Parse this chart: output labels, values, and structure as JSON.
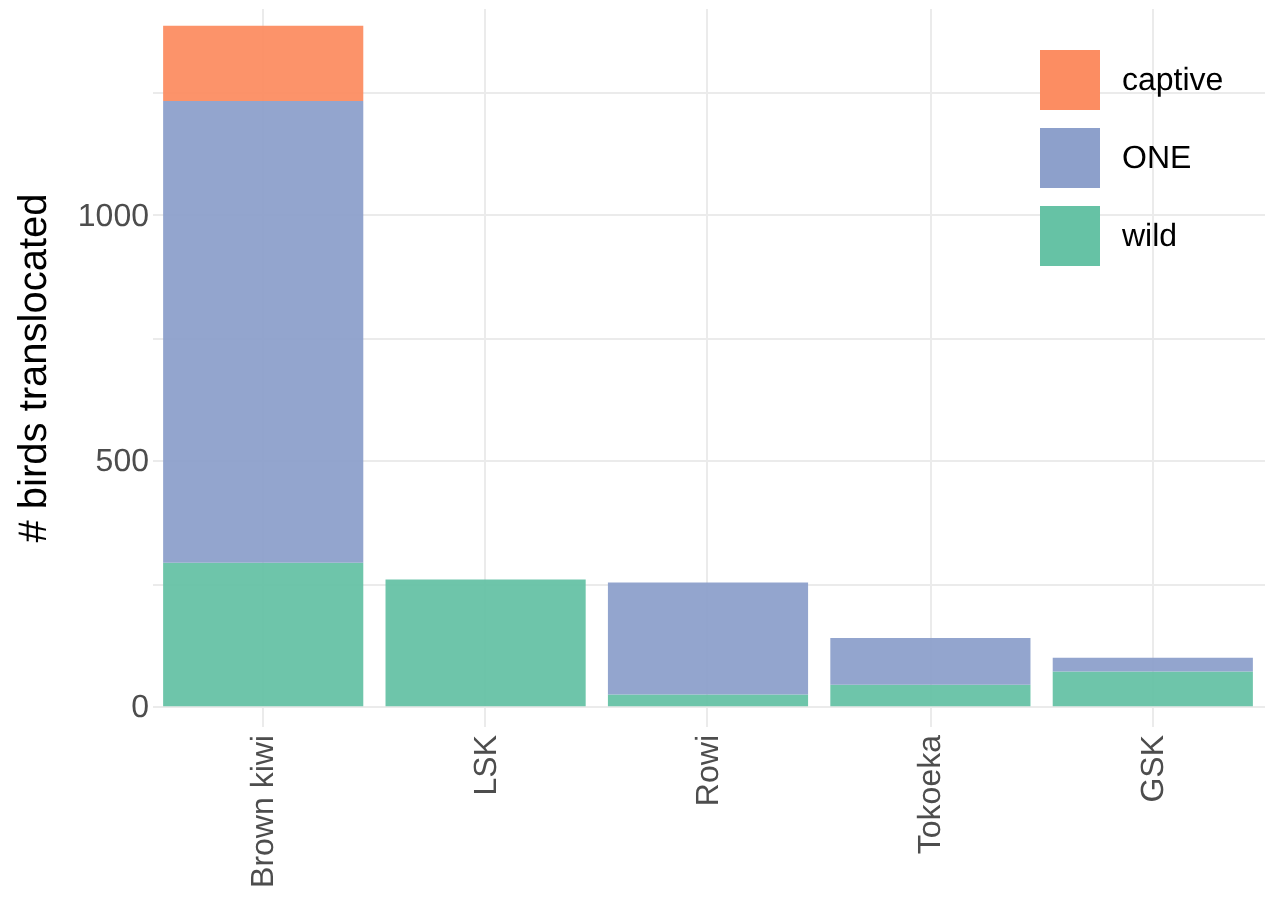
{
  "chart_data": {
    "type": "bar",
    "ylabel": "# birds translocated",
    "categories": [
      "Brown kiwi",
      "LSK",
      "Rowi",
      "Tokoeka",
      "GSK"
    ],
    "stacked": true,
    "series": [
      {
        "name": "wild",
        "color": "#66c2a5",
        "values": [
          292,
          258,
          24,
          44,
          71
        ]
      },
      {
        "name": "ONE",
        "color": "#8da0cb",
        "values": [
          939,
          0,
          228,
          95,
          28
        ]
      },
      {
        "name": "captive",
        "color": "#fc8d62",
        "values": [
          153,
          0,
          0,
          0,
          0
        ]
      }
    ],
    "ylim": [
      -40,
      1420
    ],
    "yticks": [
      0,
      {
        "value": 250,
        "label": null
      },
      500,
      {
        "value": 750,
        "label": null
      },
      1000,
      {
        "value": 1250,
        "label": null
      }
    ],
    "grid": true,
    "legend": "top right"
  }
}
